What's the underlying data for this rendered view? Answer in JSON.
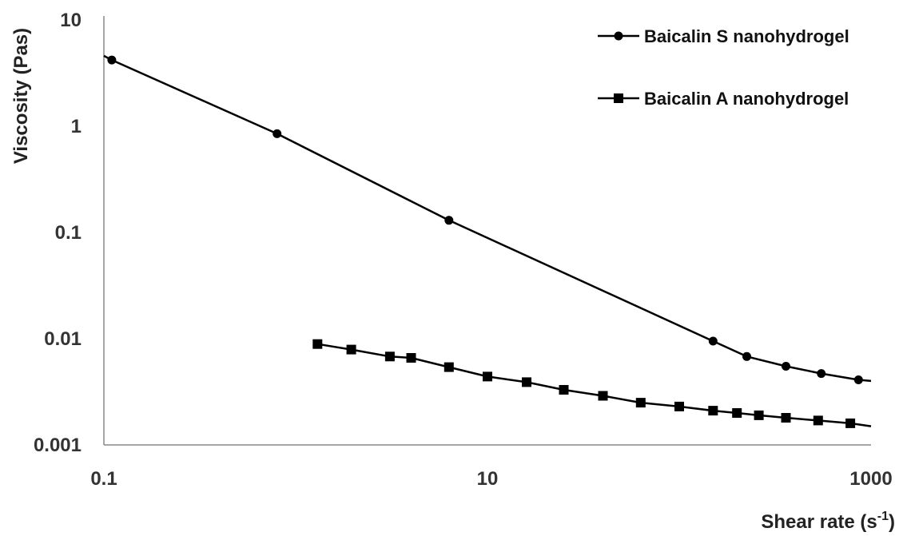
{
  "chart_data": {
    "type": "line",
    "title": "",
    "xlabel": "Shear rate (s",
    "xlabel_sup": "-1",
    "xlabel_close": ")",
    "ylabel": "Viscosity (Pas)",
    "x_scale": "log",
    "y_scale": "log",
    "xlim": [
      0.1,
      1000
    ],
    "ylim": [
      0.001,
      10
    ],
    "x_ticks": [
      "0.1",
      "10",
      "1000"
    ],
    "y_ticks": [
      "10",
      "1",
      "0.1",
      "0.01",
      "0.001"
    ],
    "grid": false,
    "legend_position": "top-right",
    "series": [
      {
        "name": "Baicalin S nanohydrogel",
        "marker": "circle",
        "color": "#000000",
        "x": [
          0.11,
          0.8,
          6.3,
          150,
          225,
          360,
          550,
          860
        ],
        "y": [
          4.2,
          0.85,
          0.13,
          0.0095,
          0.0068,
          0.0055,
          0.0047,
          0.0041
        ]
      },
      {
        "name": "Baicalin A nanohydrogel",
        "marker": "square",
        "color": "#000000",
        "x": [
          1.3,
          1.95,
          3.1,
          4.0,
          6.3,
          10,
          16,
          25,
          40,
          63,
          100,
          150,
          200,
          260,
          360,
          530,
          780
        ],
        "y": [
          0.0089,
          0.0079,
          0.0068,
          0.0066,
          0.0054,
          0.0044,
          0.0039,
          0.0033,
          0.0029,
          0.0025,
          0.0023,
          0.0021,
          0.002,
          0.0019,
          0.0018,
          0.0017,
          0.0016
        ]
      }
    ]
  }
}
